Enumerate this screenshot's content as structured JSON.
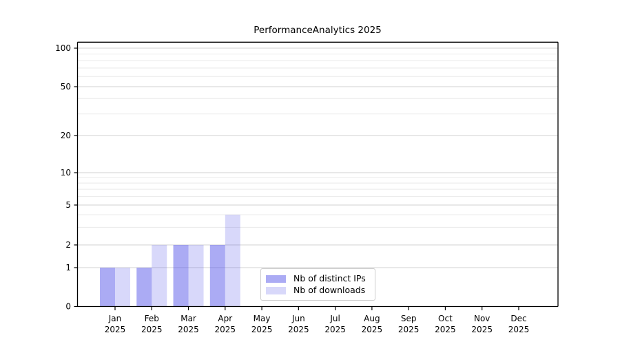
{
  "page": {
    "background": "#ffffff"
  },
  "chart_data": {
    "type": "bar",
    "title": "PerformanceAnalytics 2025",
    "categories": [
      "Jan",
      "Feb",
      "Mar",
      "Apr",
      "May",
      "Jun",
      "Jul",
      "Aug",
      "Sep",
      "Oct",
      "Nov",
      "Dec"
    ],
    "category_year": "2025",
    "series": [
      {
        "name": "Nb of distinct IPs",
        "fill": "rgba(79,79,232,0.48)",
        "swatch_hex": "#aaaaf4",
        "values": [
          1,
          1,
          2,
          2,
          0,
          0,
          0,
          0,
          0,
          0,
          0,
          0
        ]
      },
      {
        "name": "Nb of downloads",
        "fill": "rgba(79,79,232,0.22)",
        "swatch_hex": "#d9d9f8",
        "values": [
          1,
          2,
          2,
          4,
          0,
          0,
          0,
          0,
          0,
          0,
          0,
          0
        ]
      }
    ],
    "xlabel": "",
    "ylabel": "",
    "yscale": "symlog",
    "y_major_ticks": [
      0,
      1,
      2,
      5,
      10,
      20,
      50,
      100
    ],
    "y_minor_gridlines": [
      3,
      4,
      6,
      7,
      8,
      9,
      30,
      40,
      60,
      70,
      80,
      90
    ],
    "ylim": [
      0,
      112
    ],
    "grid": "horizontal major and minor, light gray",
    "legend_position": "inside bottom center-left",
    "colors": {
      "grid_major": "#d0d0d0",
      "grid_minor": "#e9e9e9",
      "spine": "#000000",
      "tick_text": "#000000",
      "legend_border": "#cccccc",
      "legend_bg": "#ffffff"
    }
  }
}
